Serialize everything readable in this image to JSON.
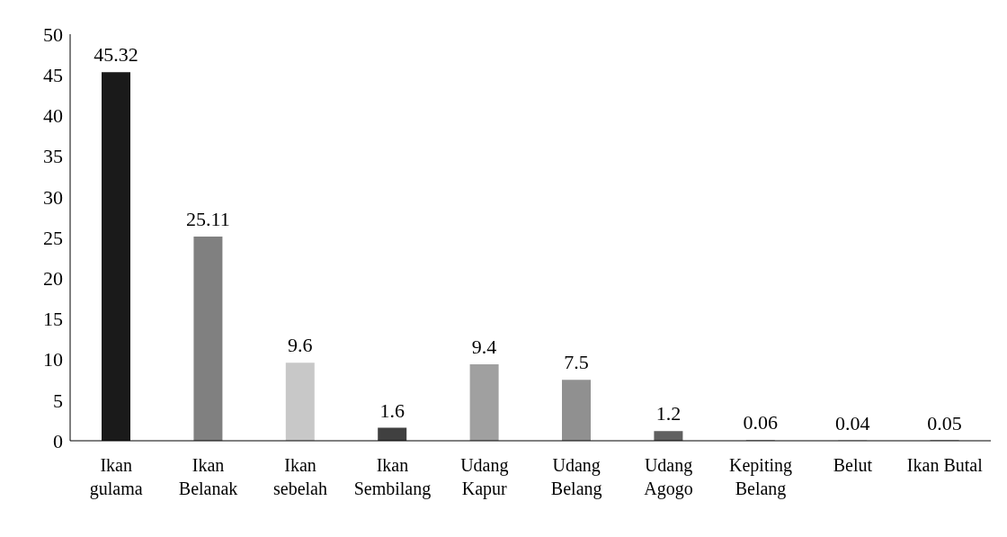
{
  "chart_data": {
    "type": "bar",
    "categories": [
      "Ikan gulama",
      "Ikan Belanak",
      "Ikan sebelah",
      "Ikan Sembilang",
      "Udang Kapur",
      "Udang Belang",
      "Udang Agogo",
      "Kepiting Belang",
      "Belut",
      "Ikan Butal"
    ],
    "values": [
      45.32,
      25.11,
      9.6,
      1.6,
      9.4,
      7.5,
      1.2,
      0.06,
      0.04,
      0.05
    ],
    "colors": [
      "#1a1a1a",
      "#808080",
      "#c8c8c8",
      "#404040",
      "#a0a0a0",
      "#909090",
      "#606060",
      "#606060",
      "#606060",
      "#606060"
    ],
    "ylim": [
      0,
      50
    ],
    "yticks": [
      0,
      5,
      10,
      15,
      20,
      25,
      30,
      35,
      40,
      45,
      50
    ],
    "grid": false,
    "legend": false,
    "data_labels": true
  }
}
